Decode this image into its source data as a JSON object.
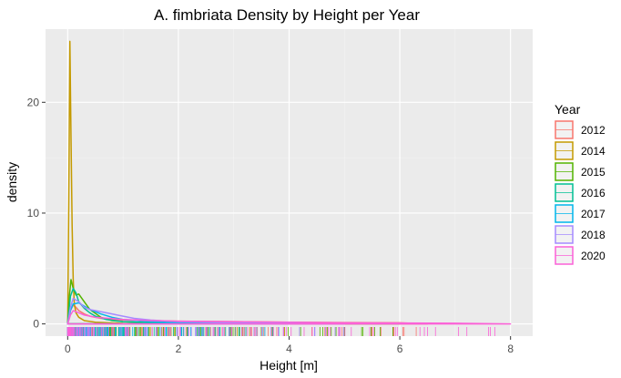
{
  "chart_data": {
    "type": "density",
    "title": "A. fimbriata Density by Height per Year",
    "xlabel": "Height [m]",
    "ylabel": "density",
    "xlim": [
      -0.4,
      8.4
    ],
    "ylim": [
      -1.1,
      26.6
    ],
    "x_ticks": [
      0,
      2,
      4,
      6,
      8
    ],
    "y_ticks": [
      0,
      10,
      20
    ],
    "x_tick_labels": [
      "0",
      "2",
      "4",
      "6",
      "8"
    ],
    "y_tick_labels": [
      "0",
      "10",
      "20"
    ],
    "grid": true,
    "legend": {
      "title": "Year",
      "position": "right"
    },
    "series": [
      {
        "name": "2012",
        "color": "#F8766D",
        "x": [
          0,
          0.05,
          0.1,
          0.15,
          0.2,
          0.3,
          0.4,
          0.6,
          0.8,
          1.0,
          1.5,
          2.0,
          3.0,
          4.0,
          5.0,
          6.0,
          6.5
        ],
        "y": [
          0,
          1.2,
          1.7,
          1.5,
          1.2,
          0.9,
          0.7,
          0.5,
          0.4,
          0.35,
          0.3,
          0.25,
          0.2,
          0.15,
          0.12,
          0.1,
          0
        ]
      },
      {
        "name": "2014",
        "color": "#C49A00",
        "x": [
          0,
          0.02,
          0.04,
          0.06,
          0.08,
          0.1,
          0.12,
          0.15,
          0.2,
          0.3,
          0.5,
          1.0,
          2.0,
          4.0
        ],
        "y": [
          0,
          11,
          25.5,
          17,
          9,
          4,
          1.8,
          1.0,
          0.6,
          0.3,
          0.15,
          0.05,
          0.02,
          0
        ]
      },
      {
        "name": "2015",
        "color": "#53B400",
        "x": [
          0,
          0.03,
          0.06,
          0.1,
          0.15,
          0.2,
          0.3,
          0.4,
          0.6,
          0.8,
          1.0,
          1.5,
          2.0,
          3.0,
          5.0,
          6.0
        ],
        "y": [
          0,
          2.5,
          4.0,
          3.2,
          2.6,
          2.7,
          2.0,
          1.3,
          0.6,
          0.3,
          0.2,
          0.1,
          0.05,
          0.03,
          0.02,
          0
        ]
      },
      {
        "name": "2016",
        "color": "#00C094",
        "x": [
          0,
          0.05,
          0.1,
          0.15,
          0.2,
          0.3,
          0.4,
          0.5,
          0.7,
          1.0,
          1.5,
          2.0,
          3.0
        ],
        "y": [
          0,
          2.5,
          3.2,
          2.8,
          2.0,
          1.4,
          1.0,
          0.7,
          0.4,
          0.2,
          0.1,
          0.05,
          0
        ]
      },
      {
        "name": "2017",
        "color": "#00B6EB",
        "x": [
          0,
          0.05,
          0.1,
          0.2,
          0.3,
          0.4,
          0.6,
          0.8,
          1.0,
          1.5,
          2.0,
          3.0,
          4.0
        ],
        "y": [
          0,
          1.2,
          1.8,
          1.9,
          1.6,
          1.3,
          0.9,
          0.6,
          0.4,
          0.2,
          0.1,
          0.05,
          0
        ]
      },
      {
        "name": "2018",
        "color": "#A58AFF",
        "x": [
          0,
          0.05,
          0.1,
          0.2,
          0.3,
          0.4,
          0.5,
          0.6,
          0.8,
          1.0,
          1.2,
          1.5,
          2.0,
          3.0,
          4.0,
          5.0
        ],
        "y": [
          0,
          1.5,
          2.3,
          2.0,
          1.5,
          1.3,
          1.2,
          1.1,
          0.9,
          0.7,
          0.5,
          0.35,
          0.2,
          0.1,
          0.05,
          0
        ]
      },
      {
        "name": "2020",
        "color": "#FB61D7",
        "x": [
          0,
          0.05,
          0.1,
          0.2,
          0.3,
          0.5,
          1.0,
          1.5,
          2.0,
          3.0,
          4.0,
          5.0,
          6.0,
          7.0,
          8.0
        ],
        "y": [
          0,
          0.8,
          1.2,
          1.0,
          0.8,
          0.6,
          0.4,
          0.3,
          0.25,
          0.2,
          0.15,
          0.1,
          0.08,
          0.06,
          0
        ]
      }
    ]
  }
}
